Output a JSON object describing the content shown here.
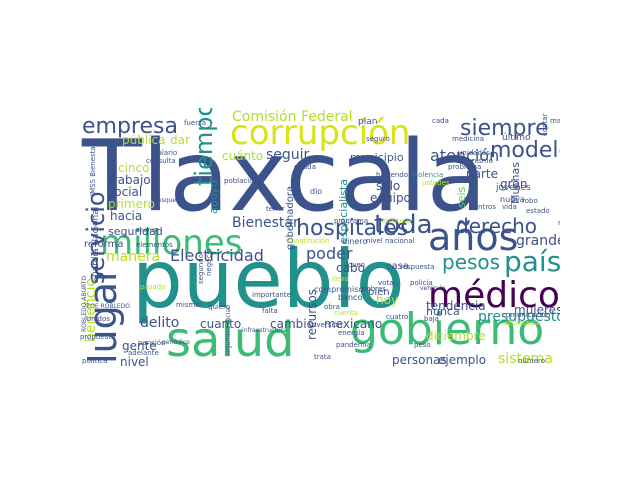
{
  "palette": {
    "background": "#ffffff",
    "dark_purple": "#440154",
    "indigo": "#3b528b",
    "blue": "#355f8d",
    "teal": "#21918c",
    "teal_green": "#1f9e89",
    "green": "#3bbb75",
    "light_green": "#5ec962",
    "lime": "#b5de2b",
    "yellow": "#d8e219"
  },
  "words": [
    {
      "text": "Tlaxcala",
      "c": "#3b528b"
    },
    {
      "text": "pueblo",
      "c": "#21918c"
    },
    {
      "text": "salud",
      "c": "#3bbb75"
    },
    {
      "text": "gobierno",
      "c": "#3bbb75"
    },
    {
      "text": "millones",
      "c": "#3bbb75"
    },
    {
      "text": "corrupción",
      "c": "#d8e219"
    },
    {
      "text": "años",
      "c": "#3b528b"
    },
    {
      "text": "médico",
      "c": "#440154"
    },
    {
      "text": "lugar",
      "c": "#3b528b"
    },
    {
      "text": "hospitales",
      "c": "#3b528b"
    },
    {
      "text": "siempre",
      "c": "#3b528b"
    },
    {
      "text": "empresa",
      "c": "#3b528b"
    },
    {
      "text": "servicio",
      "c": "#3b528b"
    },
    {
      "text": "modelo",
      "c": "#3b528b"
    },
    {
      "text": "derecho",
      "c": "#3b528b"
    },
    {
      "text": "toda",
      "c": "#3b528b"
    },
    {
      "text": "país",
      "c": "#21918c"
    },
    {
      "text": "pesos",
      "c": "#21918c"
    },
    {
      "text": "tiempo",
      "c": "#21918c"
    },
    {
      "text": "Comisión Federal",
      "c": "#b5de2b"
    },
    {
      "text": "Electricidad",
      "c": "#3b528b"
    },
    {
      "text": "Bienestar",
      "c": "#3b528b"
    },
    {
      "text": "atención",
      "c": "#3b528b"
    },
    {
      "text": "grande",
      "c": "#3b528b"
    },
    {
      "text": "seguir",
      "c": "#3b528b"
    },
    {
      "text": "poder",
      "c": "#3b528b"
    },
    {
      "text": "manera",
      "c": "#b5de2b"
    },
    {
      "text": "presupuesto",
      "c": "#21918c"
    },
    {
      "text": "delito",
      "c": "#3b528b"
    },
    {
      "text": "cuanto",
      "c": "#3b528b"
    },
    {
      "text": "cambio",
      "c": "#3b528b"
    },
    {
      "text": "mexicano",
      "c": "#3b528b"
    },
    {
      "text": "sistema",
      "c": "#b5de2b"
    },
    {
      "text": "personas",
      "c": "#3b528b"
    },
    {
      "text": "ejemplo",
      "c": "#3b528b"
    },
    {
      "text": "beneficio",
      "c": "#b5de2b"
    },
    {
      "text": "gente",
      "c": "#3b528b"
    },
    {
      "text": "nivel",
      "c": "#3b528b"
    },
    {
      "text": "mujeres",
      "c": "#3b528b"
    },
    {
      "text": "municipio",
      "c": "#3b528b"
    },
    {
      "text": "tendencia",
      "c": "#3b528b"
    },
    {
      "text": "diciembre",
      "c": "#b5de2b"
    },
    {
      "text": "apoyo",
      "c": "#21918c"
    },
    {
      "text": "cinco",
      "c": "#b5de2b"
    },
    {
      "text": "trabajo",
      "c": "#3b528b"
    },
    {
      "text": "social",
      "c": "#3b528b"
    },
    {
      "text": "primero",
      "c": "#b5de2b"
    },
    {
      "text": "hacia",
      "c": "#3b528b"
    },
    {
      "text": "cuánto",
      "c": "#b5de2b"
    },
    {
      "text": "pública",
      "c": "#b5de2b"
    },
    {
      "text": "dar",
      "c": "#b5de2b"
    },
    {
      "text": "equipo",
      "c": "#3b528b"
    },
    {
      "text": "sólo",
      "c": "#3b528b"
    },
    {
      "text": "parte",
      "c": "#3b528b"
    },
    {
      "text": "gran",
      "c": "#3b528b"
    },
    {
      "text": "hoy",
      "c": "#b5de2b"
    },
    {
      "text": "nunca",
      "c": "#3b528b"
    },
    {
      "text": "bien",
      "c": "#3b528b"
    },
    {
      "text": "cabo",
      "c": "#3b528b"
    },
    {
      "text": "casa",
      "c": "#3b528b"
    },
    {
      "text": "recursos",
      "c": "#3b528b"
    },
    {
      "text": "especialista",
      "c": "#21918c"
    },
    {
      "text": "gobernadora",
      "c": "#3b528b"
    },
    {
      "text": "Muchas",
      "c": "#3b528b"
    },
    {
      "text": "seguridad",
      "c": "#3b528b"
    },
    {
      "text": "reforma",
      "c": "#3b528b"
    },
    {
      "text": "Guardia Nacional",
      "c": "#3b528b"
    },
    {
      "text": "seis",
      "c": "#5ec962"
    },
    {
      "text": "plan",
      "c": "#3b528b"
    },
    {
      "text": "cada",
      "c": "#3b528b"
    },
    {
      "text": "salario",
      "c": "#3b528b"
    },
    {
      "text": "consulta",
      "c": "#3b528b"
    },
    {
      "text": "alza",
      "c": "#3b528b"
    },
    {
      "text": "IMSS Bienestar",
      "c": "#3b528b"
    },
    {
      "text": "jóvenes",
      "c": "#3b528b"
    },
    {
      "text": "nueva",
      "c": "#3b528b"
    },
    {
      "text": "último",
      "c": "#3b528b"
    },
    {
      "text": "seguro",
      "c": "#3b528b"
    },
    {
      "text": "mano",
      "c": "#3b528b"
    },
    {
      "text": "fuerza",
      "c": "#3b528b"
    },
    {
      "text": "haciendo",
      "c": "#3b528b"
    },
    {
      "text": "violencia",
      "c": "#21918c"
    },
    {
      "text": "población",
      "c": "#3b528b"
    },
    {
      "text": "dio",
      "c": "#3b528b"
    },
    {
      "text": "ustedes",
      "c": "#b5de2b"
    },
    {
      "text": "problema",
      "c": "#3b528b"
    },
    {
      "text": "medicina",
      "c": "#3b528b"
    },
    {
      "text": "unidades",
      "c": "#3b528b"
    },
    {
      "text": "organismo",
      "c": "#3b528b"
    },
    {
      "text": "programa",
      "c": "#3b528b"
    },
    {
      "text": "compromiso",
      "c": "#3b528b"
    },
    {
      "text": "Constitución",
      "c": "#b5de2b"
    },
    {
      "text": "dinero",
      "c": "#3b528b"
    },
    {
      "text": "nivel nacional",
      "c": "#3b528b"
    },
    {
      "text": "energía",
      "c": "#3b528b"
    },
    {
      "text": "pandemia",
      "c": "#3b528b"
    },
    {
      "text": "votar",
      "c": "#3b528b"
    },
    {
      "text": "policía",
      "c": "#3b528b"
    },
    {
      "text": "banco",
      "c": "#3b528b"
    },
    {
      "text": "cuatro",
      "c": "#3b528b"
    },
    {
      "text": "baja",
      "c": "#3b528b"
    },
    {
      "text": "inversión",
      "c": "#3b528b"
    },
    {
      "text": "importante",
      "c": "#3b528b"
    },
    {
      "text": "pasado",
      "c": "#b5de2b"
    },
    {
      "text": "segundo",
      "c": "#3b528b"
    },
    {
      "text": "negocio",
      "c": "#3b528b"
    },
    {
      "text": "mismo",
      "c": "#3b528b"
    },
    {
      "text": "ZOE ROBLEDO",
      "c": "#3b528b"
    },
    {
      "text": "ROBLEDO ABURTO",
      "c": "#3b528b"
    },
    {
      "text": "Unidos",
      "c": "#3b528b"
    },
    {
      "text": "adelante",
      "c": "#3b528b"
    },
    {
      "text": "política",
      "c": "#3b528b"
    },
    {
      "text": "pensión",
      "c": "#3b528b"
    },
    {
      "text": "quiero",
      "c": "#3b528b"
    },
    {
      "text": "propuesta",
      "c": "#3b528b"
    },
    {
      "text": "número",
      "c": "#3b528b"
    },
    {
      "text": "comunicación",
      "c": "#3b528b"
    },
    {
      "text": "secretaría",
      "c": "#b5de2b"
    },
    {
      "text": "vida",
      "c": "#3b528b"
    },
    {
      "text": "centros",
      "c": "#3b528b"
    },
    {
      "text": "vehículo",
      "c": "#3b528b"
    },
    {
      "text": "trata",
      "c": "#3b528b"
    },
    {
      "text": "estado",
      "c": "#3b528b"
    },
    {
      "text": "robo",
      "c": "#3b528b"
    },
    {
      "text": "nuevo",
      "c": "#3b528b"
    },
    {
      "text": "elementos",
      "c": "#3b528b"
    },
    {
      "text": "instituto",
      "c": "#b5de2b"
    },
    {
      "text": "esquema",
      "c": "#3b528b"
    },
    {
      "text": "periódico",
      "c": "#3b528b"
    },
    {
      "text": "menos",
      "c": "#3b528b"
    },
    {
      "text": "seguridad social",
      "c": "#3b528b"
    },
    {
      "text": "infraestructura",
      "c": "#3b528b"
    },
    {
      "text": "obra",
      "c": "#3b528b"
    },
    {
      "text": "tener",
      "c": "#3b528b"
    },
    {
      "text": "lleva",
      "c": "#b5de2b"
    },
    {
      "text": "contar",
      "c": "#3b528b"
    },
    {
      "text": "deuda",
      "c": "#3b528b"
    },
    {
      "text": "pobres",
      "c": "#3b528b"
    },
    {
      "text": "joven",
      "c": "#3b528b"
    },
    {
      "text": "cuenta",
      "c": "#b5de2b"
    },
    {
      "text": "peso",
      "c": "#3b528b"
    },
    {
      "text": "respuesta",
      "c": "#3b528b"
    },
    {
      "text": "falta",
      "c": "#3b528b"
    }
  ]
}
